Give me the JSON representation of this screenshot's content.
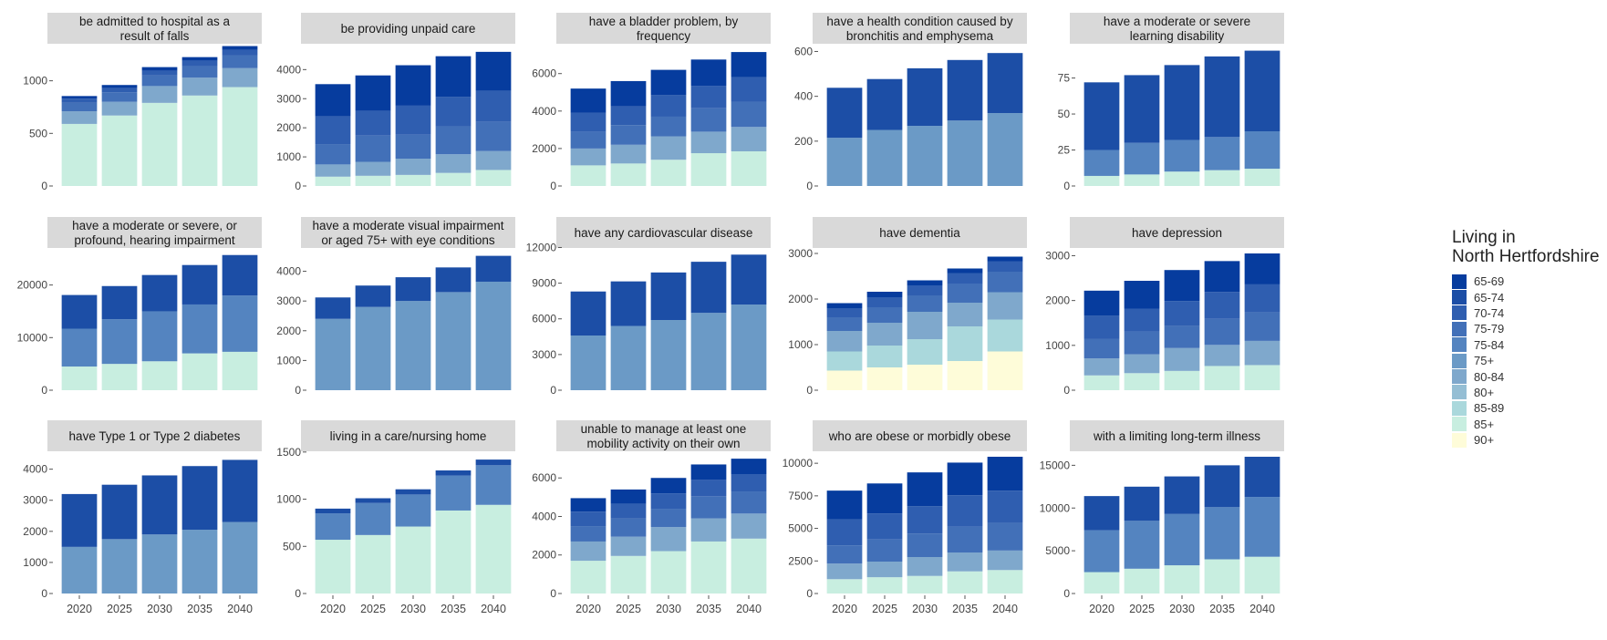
{
  "legend": {
    "title_line1": "Living in",
    "title_line2": "North Hertfordshire",
    "items": [
      {
        "label": "65-69",
        "color": "#063c9e"
      },
      {
        "label": "65-74",
        "color": "#1c4ea6"
      },
      {
        "label": "70-74",
        "color": "#2f5eb0"
      },
      {
        "label": "75-79",
        "color": "#4270b8"
      },
      {
        "label": "75-84",
        "color": "#5484c0"
      },
      {
        "label": "75+",
        "color": "#6b9ac6"
      },
      {
        "label": "80-84",
        "color": "#7fa8cc"
      },
      {
        "label": "80+",
        "color": "#95bed4"
      },
      {
        "label": "85-89",
        "color": "#aad8dc"
      },
      {
        "label": "85+",
        "color": "#c8eee0"
      },
      {
        "label": "90+",
        "color": "#fefcd9"
      }
    ]
  },
  "chart_data": [
    {
      "type": "bar",
      "stacked": true,
      "title": "be admitted to hospital as a\nresult of falls",
      "categories": [
        "2020",
        "2025",
        "2030",
        "2035",
        "2040"
      ],
      "ylim": [
        0,
        1300
      ],
      "yticks": [
        0,
        500,
        1000
      ],
      "ytick_labels": [
        "0",
        "500",
        "1000"
      ],
      "series": [
        {
          "name": "85+",
          "values": [
            590,
            670,
            790,
            860,
            940
          ]
        },
        {
          "name": "80-84",
          "values": [
            120,
            130,
            160,
            170,
            180
          ]
        },
        {
          "name": "75-79",
          "values": [
            80,
            90,
            100,
            110,
            120
          ]
        },
        {
          "name": "70-74",
          "values": [
            40,
            40,
            45,
            50,
            55
          ]
        },
        {
          "name": "65-69",
          "values": [
            25,
            30,
            35,
            35,
            35
          ]
        }
      ]
    },
    {
      "type": "bar",
      "stacked": true,
      "title": "be providing unpaid care",
      "categories": [
        "2020",
        "2025",
        "2030",
        "2035",
        "2040"
      ],
      "ylim": [
        0,
        4700
      ],
      "yticks": [
        0,
        1000,
        2000,
        3000,
        4000
      ],
      "ytick_labels": [
        "0",
        "1000",
        "2000",
        "3000",
        "4000"
      ],
      "series": [
        {
          "name": "85+",
          "values": [
            320,
            350,
            380,
            450,
            550
          ]
        },
        {
          "name": "80-84",
          "values": [
            420,
            480,
            560,
            640,
            650
          ]
        },
        {
          "name": "75-79",
          "values": [
            700,
            900,
            820,
            950,
            1000
          ]
        },
        {
          "name": "70-74",
          "values": [
            950,
            850,
            1000,
            1020,
            1070
          ]
        },
        {
          "name": "65-69",
          "values": [
            1110,
            1220,
            1390,
            1400,
            1340
          ]
        }
      ]
    },
    {
      "type": "bar",
      "stacked": true,
      "title": "have a bladder problem, by\nfrequency",
      "categories": [
        "2020",
        "2025",
        "2030",
        "2035",
        "2040"
      ],
      "ylim": [
        0,
        7300
      ],
      "yticks": [
        0,
        2000,
        4000,
        6000
      ],
      "ytick_labels": [
        "0",
        "2000",
        "4000",
        "6000"
      ],
      "series": [
        {
          "name": "85+",
          "values": [
            1100,
            1200,
            1400,
            1750,
            1850
          ]
        },
        {
          "name": "80-84",
          "values": [
            900,
            1000,
            1250,
            1150,
            1300
          ]
        },
        {
          "name": "75-79",
          "values": [
            900,
            1050,
            1050,
            1250,
            1350
          ]
        },
        {
          "name": "70-74",
          "values": [
            1000,
            1000,
            1150,
            1200,
            1300
          ]
        },
        {
          "name": "65-69",
          "values": [
            1300,
            1350,
            1350,
            1400,
            1350
          ]
        }
      ]
    },
    {
      "type": "bar",
      "stacked": true,
      "title": "have a health condition caused by\nbronchitis and emphysema",
      "categories": [
        "2020",
        "2025",
        "2030",
        "2035",
        "2040"
      ],
      "ylim": [
        0,
        610
      ],
      "yticks": [
        0,
        200,
        400,
        600
      ],
      "ytick_labels": [
        "0",
        "200",
        "400",
        "600"
      ],
      "series": [
        {
          "name": "75+",
          "values": [
            215,
            250,
            268,
            292,
            325
          ]
        },
        {
          "name": "65-74",
          "values": [
            223,
            227,
            257,
            270,
            268
          ]
        }
      ]
    },
    {
      "type": "bar",
      "stacked": true,
      "title": "have a moderate or severe\nlearning disability",
      "categories": [
        "2020",
        "2025",
        "2030",
        "2035",
        "2040"
      ],
      "ylim": [
        0,
        95
      ],
      "yticks": [
        0,
        25,
        50,
        75
      ],
      "ytick_labels": [
        "0",
        "25",
        "50",
        "75"
      ],
      "series": [
        {
          "name": "85+",
          "values": [
            7,
            8,
            10,
            11,
            12
          ]
        },
        {
          "name": "75-84",
          "values": [
            18,
            22,
            22,
            23,
            26
          ]
        },
        {
          "name": "65-74",
          "values": [
            47,
            47,
            52,
            56,
            56
          ]
        }
      ]
    },
    {
      "type": "bar",
      "stacked": true,
      "title": "have a moderate or severe, or\nprofound, hearing impairment",
      "categories": [
        "2020",
        "2025",
        "2030",
        "2035",
        "2040"
      ],
      "ylim": [
        0,
        26000
      ],
      "yticks": [
        0,
        10000,
        20000
      ],
      "ytick_labels": [
        "0",
        "10000",
        "20000"
      ],
      "series": [
        {
          "name": "85+",
          "values": [
            4500,
            5000,
            5500,
            7000,
            7300
          ]
        },
        {
          "name": "75-84",
          "values": [
            7200,
            8500,
            9500,
            9300,
            10700
          ]
        },
        {
          "name": "65-74",
          "values": [
            6400,
            6300,
            6900,
            7500,
            7700
          ]
        }
      ]
    },
    {
      "type": "bar",
      "stacked": true,
      "title": "have a moderate visual impairment\nor aged 75+ with eye conditions",
      "categories": [
        "2020",
        "2025",
        "2030",
        "2035",
        "2040"
      ],
      "ylim": [
        0,
        4600
      ],
      "yticks": [
        0,
        1000,
        2000,
        3000,
        4000
      ],
      "ytick_labels": [
        "0",
        "1000",
        "2000",
        "3000",
        "4000"
      ],
      "series": [
        {
          "name": "75+",
          "values": [
            2400,
            2800,
            3000,
            3300,
            3650
          ]
        },
        {
          "name": "65-74",
          "values": [
            720,
            720,
            800,
            830,
            870
          ]
        }
      ]
    },
    {
      "type": "bar",
      "stacked": true,
      "title": "have any cardiovascular disease",
      "categories": [
        "2020",
        "2025",
        "2030",
        "2035",
        "2040"
      ],
      "ylim": [
        0,
        11500
      ],
      "yticks": [
        0,
        3000,
        6000,
        9000,
        12000
      ],
      "ytick_labels": [
        "0",
        "3000",
        "6000",
        "9000",
        "12000"
      ],
      "series": [
        {
          "name": "75+",
          "values": [
            4600,
            5400,
            5900,
            6500,
            7200
          ]
        },
        {
          "name": "65-74",
          "values": [
            3700,
            3750,
            4000,
            4300,
            4200
          ]
        }
      ]
    },
    {
      "type": "bar",
      "stacked": true,
      "title": "have dementia",
      "categories": [
        "2020",
        "2025",
        "2030",
        "2035",
        "2040"
      ],
      "ylim": [
        0,
        3000
      ],
      "yticks": [
        0,
        1000,
        2000,
        3000
      ],
      "ytick_labels": [
        "0",
        "1000",
        "2000",
        "3000"
      ],
      "series": [
        {
          "name": "90+",
          "values": [
            430,
            500,
            560,
            640,
            850
          ]
        },
        {
          "name": "85-89",
          "values": [
            420,
            480,
            560,
            760,
            700
          ]
        },
        {
          "name": "80-84",
          "values": [
            450,
            500,
            600,
            520,
            600
          ]
        },
        {
          "name": "75-79",
          "values": [
            300,
            340,
            360,
            420,
            450
          ]
        },
        {
          "name": "70-74",
          "values": [
            200,
            220,
            220,
            230,
            230
          ]
        },
        {
          "name": "65-69",
          "values": [
            110,
            120,
            110,
            100,
            100
          ]
        }
      ]
    },
    {
      "type": "bar",
      "stacked": true,
      "title": "have depression",
      "categories": [
        "2020",
        "2025",
        "2030",
        "2035",
        "2040"
      ],
      "ylim": [
        0,
        3050
      ],
      "yticks": [
        0,
        1000,
        2000,
        3000
      ],
      "ytick_labels": [
        "0",
        "1000",
        "2000",
        "3000"
      ],
      "series": [
        {
          "name": "85+",
          "values": [
            330,
            380,
            430,
            540,
            560
          ]
        },
        {
          "name": "80-84",
          "values": [
            380,
            420,
            510,
            470,
            540
          ]
        },
        {
          "name": "75-79",
          "values": [
            430,
            510,
            490,
            580,
            640
          ]
        },
        {
          "name": "70-74",
          "values": [
            520,
            510,
            560,
            600,
            620
          ]
        },
        {
          "name": "65-69",
          "values": [
            560,
            620,
            690,
            690,
            690
          ]
        }
      ]
    },
    {
      "type": "bar",
      "stacked": true,
      "title": "have Type 1 or Type 2 diabetes",
      "categories": [
        "2020",
        "2025",
        "2030",
        "2035",
        "2040"
      ],
      "ylim": [
        0,
        4400
      ],
      "yticks": [
        0,
        1000,
        2000,
        3000,
        4000
      ],
      "ytick_labels": [
        "0",
        "1000",
        "2000",
        "3000",
        "4000"
      ],
      "series": [
        {
          "name": "75+",
          "values": [
            1500,
            1750,
            1900,
            2050,
            2300
          ]
        },
        {
          "name": "65-74",
          "values": [
            1700,
            1750,
            1900,
            2050,
            2000
          ]
        }
      ]
    },
    {
      "type": "bar",
      "stacked": true,
      "title": "living in a care/nursing home",
      "categories": [
        "2020",
        "2025",
        "2030",
        "2035",
        "2040"
      ],
      "ylim": [
        0,
        1450
      ],
      "yticks": [
        0,
        500,
        1000,
        1500
      ],
      "ytick_labels": [
        "0",
        "500",
        "1000",
        "1500"
      ],
      "series": [
        {
          "name": "85+",
          "values": [
            570,
            620,
            710,
            880,
            940
          ]
        },
        {
          "name": "75-84",
          "values": [
            280,
            340,
            340,
            370,
            420
          ]
        },
        {
          "name": "65-74",
          "values": [
            50,
            50,
            55,
            55,
            60
          ]
        }
      ]
    },
    {
      "type": "bar",
      "stacked": true,
      "title": "unable to manage at least one\nmobility activity on their own",
      "categories": [
        "2020",
        "2025",
        "2030",
        "2035",
        "2040"
      ],
      "ylim": [
        0,
        7100
      ],
      "yticks": [
        0,
        2000,
        4000,
        6000
      ],
      "ytick_labels": [
        "0",
        "2000",
        "4000",
        "6000"
      ],
      "series": [
        {
          "name": "85+",
          "values": [
            1700,
            1950,
            2200,
            2700,
            2850
          ]
        },
        {
          "name": "80-84",
          "values": [
            1000,
            1000,
            1250,
            1200,
            1300
          ]
        },
        {
          "name": "75-79",
          "values": [
            800,
            950,
            950,
            1150,
            1150
          ]
        },
        {
          "name": "70-74",
          "values": [
            750,
            750,
            800,
            850,
            900
          ]
        },
        {
          "name": "65-69",
          "values": [
            700,
            750,
            800,
            800,
            800
          ]
        }
      ]
    },
    {
      "type": "bar",
      "stacked": true,
      "title": "who are obese or morbidly obese",
      "categories": [
        "2020",
        "2025",
        "2030",
        "2035",
        "2040"
      ],
      "ylim": [
        0,
        10500
      ],
      "yticks": [
        0,
        2500,
        5000,
        7500,
        10000
      ],
      "ytick_labels": [
        "0",
        "2500",
        "5000",
        "7500",
        "10000"
      ],
      "series": [
        {
          "name": "85+",
          "values": [
            1100,
            1250,
            1350,
            1700,
            1800
          ]
        },
        {
          "name": "80-84",
          "values": [
            1200,
            1200,
            1450,
            1450,
            1500
          ]
        },
        {
          "name": "75-79",
          "values": [
            1400,
            1700,
            1800,
            2000,
            2100
          ]
        },
        {
          "name": "70-74",
          "values": [
            2000,
            2000,
            2100,
            2400,
            2500
          ]
        },
        {
          "name": "65-69",
          "values": [
            2200,
            2300,
            2600,
            2500,
            2600
          ]
        }
      ]
    },
    {
      "type": "bar",
      "stacked": true,
      "title": "with a limiting long-term illness",
      "categories": [
        "2020",
        "2025",
        "2030",
        "2035",
        "2040"
      ],
      "ylim": [
        0,
        16000
      ],
      "yticks": [
        0,
        5000,
        10000,
        15000
      ],
      "ytick_labels": [
        "0",
        "5000",
        "10000",
        "15000"
      ],
      "series": [
        {
          "name": "85+",
          "values": [
            2500,
            2900,
            3300,
            4000,
            4300
          ]
        },
        {
          "name": "75-84",
          "values": [
            4900,
            5600,
            6000,
            6100,
            7000
          ]
        },
        {
          "name": "65-74",
          "values": [
            4000,
            4000,
            4400,
            4900,
            4700
          ]
        }
      ]
    }
  ]
}
